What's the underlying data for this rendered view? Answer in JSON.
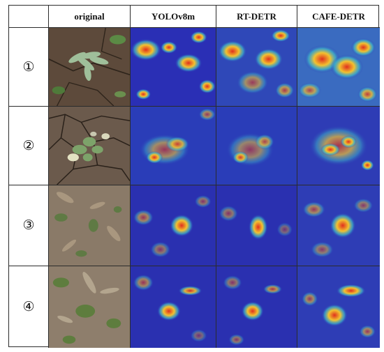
{
  "table": {
    "column_headers": [
      "original",
      "YOLOv8m",
      "RT-DETR",
      "CAFE-DETR"
    ],
    "row_labels": [
      "①",
      "②",
      "③",
      "④"
    ]
  },
  "colors": {
    "border": "#2b2b2b",
    "heat_cold": "#2a2fb5",
    "heat_hot": "#e0301e"
  }
}
